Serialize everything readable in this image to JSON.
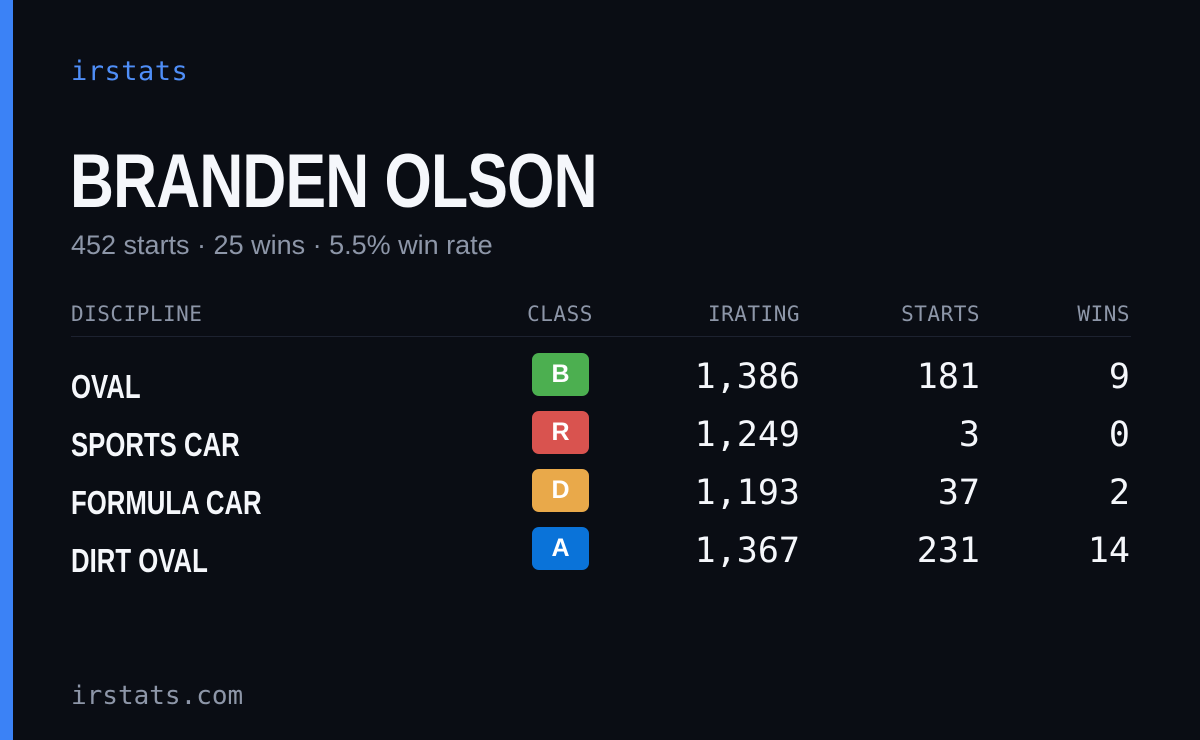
{
  "brand": "irstats",
  "driver": {
    "name": "BRANDEN OLSON",
    "summary": "452 starts · 25 wins · 5.5% win rate"
  },
  "table": {
    "headers": {
      "discipline": "DISCIPLINE",
      "class": "CLASS",
      "irating": "IRATING",
      "starts": "STARTS",
      "wins": "WINS"
    },
    "rows": [
      {
        "discipline": "OVAL",
        "class": "B",
        "class_color": "#4caf50",
        "irating": "1,386",
        "starts": "181",
        "wins": "9"
      },
      {
        "discipline": "SPORTS CAR",
        "class": "R",
        "class_color": "#d9534f",
        "irating": "1,249",
        "starts": "3",
        "wins": "0"
      },
      {
        "discipline": "FORMULA CAR",
        "class": "D",
        "class_color": "#e9a94a",
        "irating": "1,193",
        "starts": "37",
        "wins": "2"
      },
      {
        "discipline": "DIRT OVAL",
        "class": "A",
        "class_color": "#0a73d9",
        "irating": "1,367",
        "starts": "231",
        "wins": "14"
      }
    ]
  },
  "footer": {
    "url": "irstats.com"
  },
  "colors": {
    "accent": "#3b82f6",
    "brand_text": "#4f8ef7",
    "background": "#0a0d14",
    "muted_text": "#8d96a8"
  }
}
